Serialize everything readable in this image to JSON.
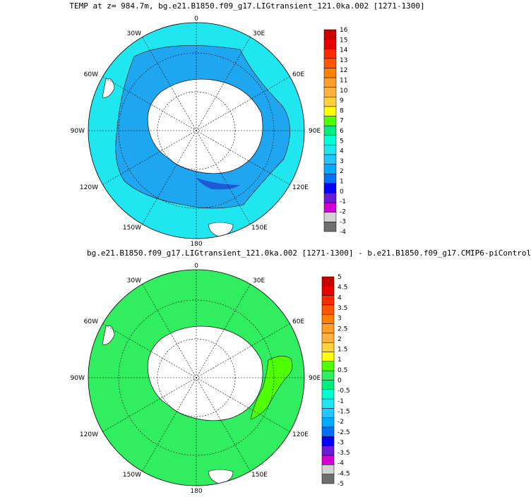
{
  "panels": [
    {
      "title": "TEMP at z= 984.7m, bg.e21.B1850.f09_g17.LIGtransient_121.0ka.002 [1271-1300]",
      "lon_labels": {
        "top": "0",
        "right_top": "30E",
        "right_upper": "60E",
        "right": "90E",
        "right_lower": "120E",
        "right_bottom": "150E",
        "bottom": "180",
        "left_bottom": "150W",
        "left_lower": "120W",
        "left": "90W",
        "left_upper": "60W",
        "left_top": "30W"
      },
      "colorbar": {
        "labels": [
          "16",
          "15",
          "14",
          "13",
          "12",
          "11",
          "10",
          "9",
          "8",
          "7",
          "6",
          "5",
          "4",
          "3",
          "2",
          "1",
          "0",
          "-1",
          "-2",
          "-3",
          "-4"
        ],
        "colors": [
          "#c80000",
          "#e60000",
          "#ff2a00",
          "#ff5500",
          "#ff8000",
          "#ff9f2a",
          "#ffb23c",
          "#ffd23c",
          "#ffff00",
          "#50ff00",
          "#00ee80",
          "#00ffd2",
          "#20e6f0",
          "#20c8ff",
          "#00aaff",
          "#0070ff",
          "#0000ff",
          "#6a1bd6",
          "#d200d2",
          "#d2d2d2",
          "#6e6e6e"
        ]
      },
      "field_colors": {
        "ocean_outer": "#20e6f0",
        "ocean_inner": "#1fa6f0",
        "ocean_deep": "#1f5ad6",
        "land": "#ffffff"
      }
    },
    {
      "title": "bg.e21.B1850.f09_g17.LIGtransient_121.0ka.002 [1271-1300] - b.e21.B1850.f09_g17.CMIP6-piControl",
      "lon_labels": {
        "top": "0",
        "right_top": "30E",
        "right_upper": "60E",
        "right": "90E",
        "right_lower": "120E",
        "right_bottom": "150E",
        "bottom": "180",
        "left_bottom": "150W",
        "left_lower": "120W",
        "left": "90W",
        "left_upper": "60W",
        "left_top": "30W"
      },
      "colorbar": {
        "labels": [
          "5",
          "4.5",
          "4",
          "3.5",
          "3",
          "2.5",
          "2",
          "1.5",
          "1",
          "0.5",
          "0",
          "-0.5",
          "-1",
          "-1.5",
          "-2",
          "-2.5",
          "-3",
          "-3.5",
          "-4",
          "-4.5",
          "-5"
        ],
        "colors": [
          "#c80000",
          "#e60000",
          "#ff2a00",
          "#ff5500",
          "#ff8000",
          "#ff9f2a",
          "#ffb23c",
          "#ffd23c",
          "#ffff00",
          "#50ff00",
          "#30ee60",
          "#00ee80",
          "#00ffd2",
          "#20e6f0",
          "#20c8ff",
          "#00aaff",
          "#0070ff",
          "#0000ff",
          "#6a1bd6",
          "#d200d2",
          "#d2d2d2",
          "#6e6e6e"
        ]
      },
      "field_colors": {
        "ocean_main": "#30ee60",
        "anomaly_patch": "#50ff00",
        "land": "#ffffff"
      }
    }
  ]
}
